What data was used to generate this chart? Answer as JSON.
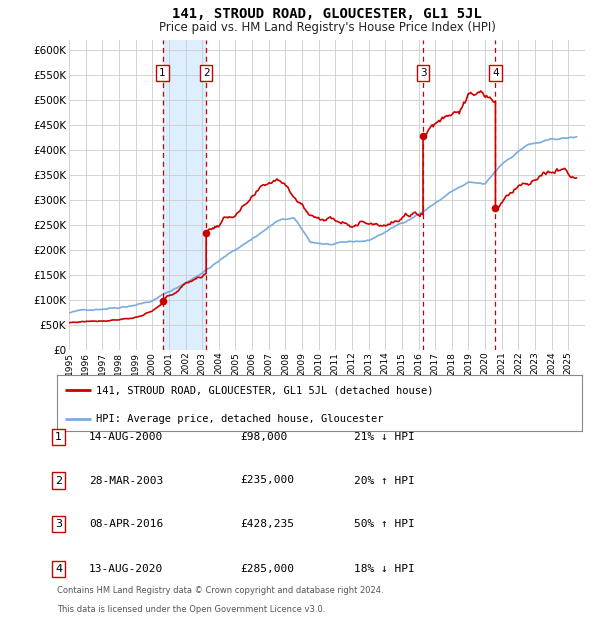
{
  "title": "141, STROUD ROAD, GLOUCESTER, GL1 5JL",
  "subtitle": "Price paid vs. HM Land Registry's House Price Index (HPI)",
  "legend_label_red": "141, STROUD ROAD, GLOUCESTER, GL1 5JL (detached house)",
  "legend_label_blue": "HPI: Average price, detached house, Gloucester",
  "footer1": "Contains HM Land Registry data © Crown copyright and database right 2024.",
  "footer2": "This data is licensed under the Open Government Licence v3.0.",
  "transactions": [
    {
      "num": 1,
      "price": 98000,
      "x": 2000.62
    },
    {
      "num": 2,
      "price": 235000,
      "x": 2003.24
    },
    {
      "num": 3,
      "price": 428235,
      "x": 2016.27
    },
    {
      "num": 4,
      "price": 285000,
      "x": 2020.62
    }
  ],
  "table_rows": [
    {
      "num": 1,
      "date_str": "14-AUG-2000",
      "price_str": "£98,000",
      "note": "21% ↓ HPI"
    },
    {
      "num": 2,
      "date_str": "28-MAR-2003",
      "price_str": "£235,000",
      "note": "20% ↑ HPI"
    },
    {
      "num": 3,
      "date_str": "08-APR-2016",
      "price_str": "£428,235",
      "note": "50% ↑ HPI"
    },
    {
      "num": 4,
      "date_str": "13-AUG-2020",
      "price_str": "£285,000",
      "note": "18% ↓ HPI"
    }
  ],
  "xmin": 1995,
  "xmax": 2026,
  "ymin": 0,
  "ymax": 620000,
  "yticks": [
    0,
    50000,
    100000,
    150000,
    200000,
    250000,
    300000,
    350000,
    400000,
    450000,
    500000,
    550000,
    600000
  ],
  "ytick_labels": [
    "£0",
    "£50K",
    "£100K",
    "£150K",
    "£200K",
    "£250K",
    "£300K",
    "£350K",
    "£400K",
    "£450K",
    "£500K",
    "£550K",
    "£600K"
  ],
  "shade_x1": 2000.62,
  "shade_x2": 2003.24,
  "red_color": "#cc0000",
  "blue_color": "#7aace0",
  "shade_color": "#ddeeff",
  "grid_color": "#cccccc",
  "label_box_color": "#cc0000",
  "bg_color": "#ffffff"
}
